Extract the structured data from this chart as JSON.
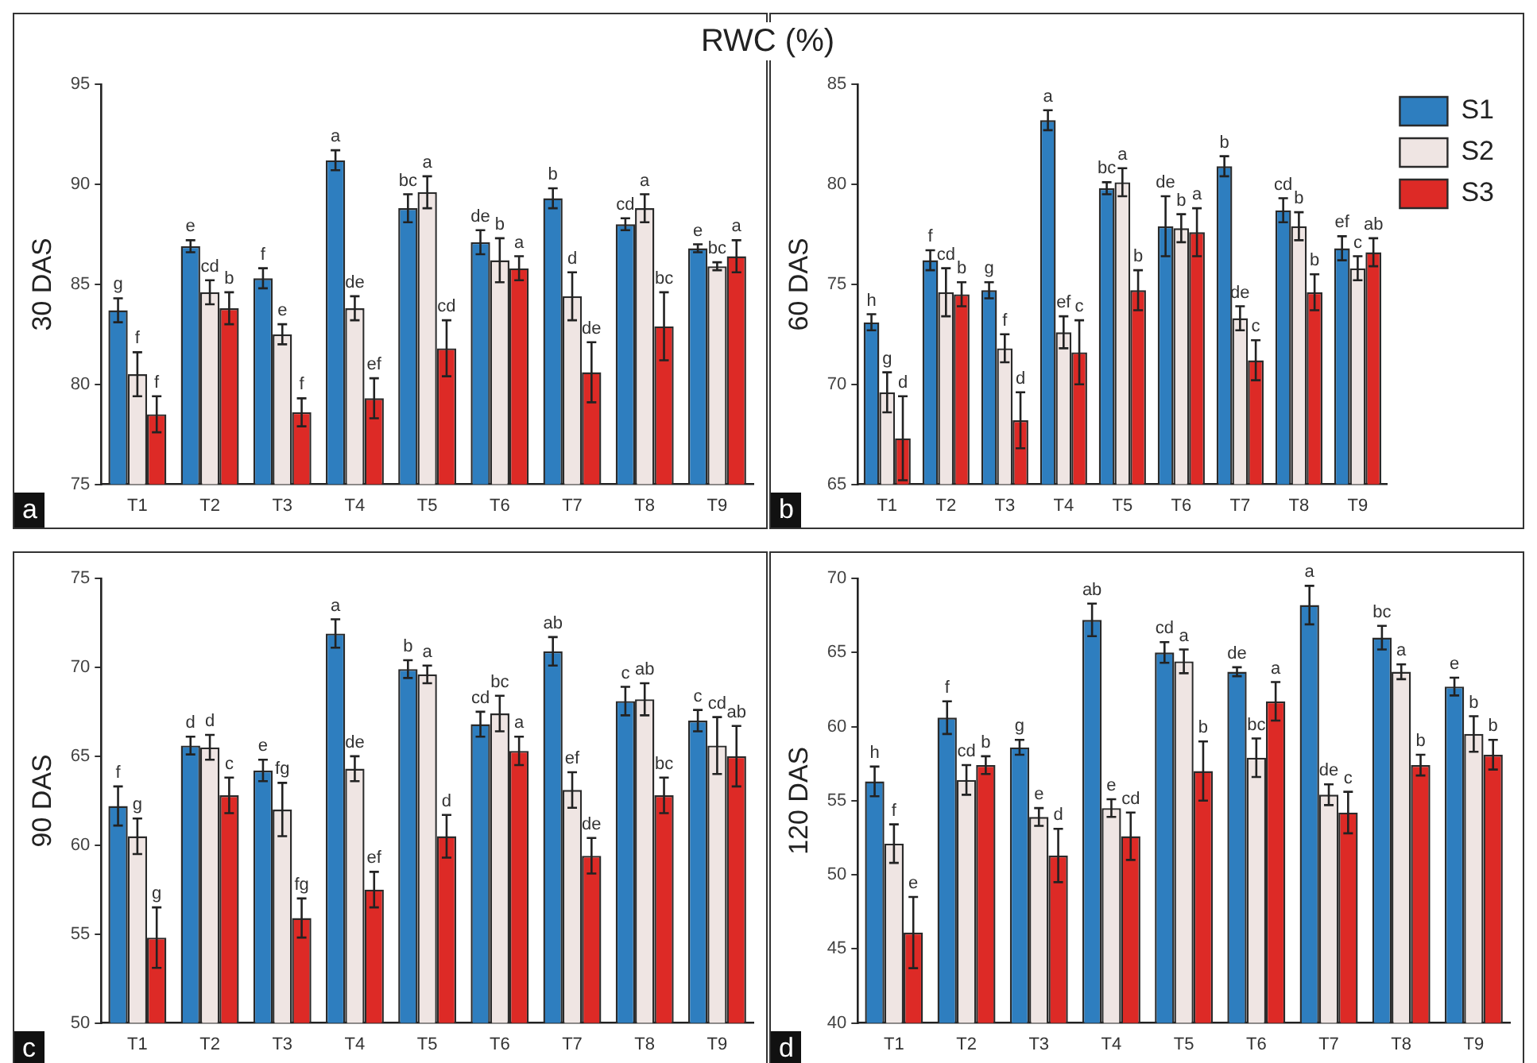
{
  "chart_data": [
    {
      "type": "bar",
      "title": "RWC (%)",
      "ylabel": "30 DAS",
      "categories": [
        "T1",
        "T2",
        "T3",
        "T4",
        "T5",
        "T6",
        "T7",
        "T8",
        "T9"
      ],
      "ylim": [
        75,
        95
      ],
      "yticks": [
        75,
        80,
        85,
        90,
        95
      ],
      "grid": false,
      "legend": false,
      "annotations": [
        "a"
      ],
      "series": [
        {
          "color": "#2e7ebf",
          "values": [
            83.7,
            86.9,
            85.3,
            91.2,
            88.8,
            87.1,
            89.3,
            88.0,
            86.8
          ],
          "errors": [
            0.6,
            0.3,
            0.5,
            0.5,
            0.7,
            0.6,
            0.5,
            0.3,
            0.2
          ],
          "value_labels": [
            "g",
            "e",
            "f",
            "a",
            "bc",
            "de",
            "b",
            "cd",
            "e"
          ]
        },
        {
          "color": "#efe5e3",
          "values": [
            80.5,
            84.6,
            82.5,
            83.8,
            89.6,
            86.2,
            84.4,
            88.8,
            85.9
          ],
          "errors": [
            1.1,
            0.6,
            0.5,
            0.6,
            0.8,
            1.1,
            1.2,
            0.7,
            0.2
          ],
          "value_labels": [
            "f",
            "cd",
            "e",
            "de",
            "a",
            "b",
            "d",
            "a",
            "bc"
          ]
        },
        {
          "color": "#dd2a26",
          "values": [
            78.5,
            83.8,
            78.6,
            79.3,
            81.8,
            85.8,
            80.6,
            82.9,
            86.4
          ],
          "errors": [
            0.9,
            0.8,
            0.7,
            1.0,
            1.4,
            0.6,
            1.5,
            1.7,
            0.8
          ],
          "value_labels": [
            "f",
            "b",
            "f",
            "ef",
            "cd",
            "a",
            "de",
            "bc",
            "a"
          ]
        }
      ]
    },
    {
      "type": "bar",
      "ylabel": "60 DAS",
      "categories": [
        "T1",
        "T2",
        "T3",
        "T4",
        "T5",
        "T6",
        "T7",
        "T8",
        "T9"
      ],
      "ylim": [
        65,
        85
      ],
      "yticks": [
        65,
        70,
        75,
        80,
        85
      ],
      "grid": false,
      "legend": "top right",
      "annotations": [
        "b"
      ],
      "series": [
        {
          "name": "S1",
          "color": "#2e7ebf",
          "values": [
            73.1,
            76.2,
            74.7,
            83.2,
            79.8,
            77.9,
            80.9,
            78.7,
            76.8
          ],
          "errors": [
            0.4,
            0.5,
            0.4,
            0.5,
            0.3,
            1.5,
            0.5,
            0.6,
            0.6
          ],
          "value_labels": [
            "h",
            "f",
            "g",
            "a",
            "bc",
            "de",
            "b",
            "cd",
            "ef"
          ]
        },
        {
          "name": "S2",
          "color": "#efe5e3",
          "values": [
            69.6,
            74.6,
            71.8,
            72.6,
            80.1,
            77.8,
            73.3,
            77.9,
            75.8
          ],
          "errors": [
            1.0,
            1.2,
            0.7,
            0.8,
            0.7,
            0.7,
            0.6,
            0.7,
            0.6
          ],
          "value_labels": [
            "g",
            "cd",
            "f",
            "ef",
            "a",
            "b",
            "de",
            "b",
            "c"
          ]
        },
        {
          "name": "S3",
          "color": "#dd2a26",
          "values": [
            67.3,
            74.5,
            68.2,
            71.6,
            74.7,
            77.6,
            71.2,
            74.6,
            76.6
          ],
          "errors": [
            2.1,
            0.6,
            1.4,
            1.6,
            1.0,
            1.2,
            1.0,
            0.9,
            0.7
          ],
          "value_labels": [
            "d",
            "b",
            "d",
            "c",
            "b",
            "a",
            "c",
            "b",
            "ab"
          ]
        }
      ]
    },
    {
      "type": "bar",
      "ylabel": "90 DAS",
      "categories": [
        "T1",
        "T2",
        "T3",
        "T4",
        "T5",
        "T6",
        "T7",
        "T8",
        "T9"
      ],
      "ylim": [
        50,
        75
      ],
      "yticks": [
        50,
        55,
        60,
        65,
        70,
        75
      ],
      "grid": false,
      "legend": false,
      "annotations": [
        "c"
      ],
      "series": [
        {
          "color": "#2e7ebf",
          "values": [
            62.2,
            65.6,
            64.2,
            71.9,
            69.9,
            66.8,
            70.9,
            68.1,
            67.0
          ],
          "errors": [
            1.1,
            0.5,
            0.6,
            0.8,
            0.5,
            0.7,
            0.8,
            0.8,
            0.6
          ],
          "value_labels": [
            "f",
            "d",
            "e",
            "a",
            "b",
            "cd",
            "ab",
            "c",
            "c"
          ]
        },
        {
          "color": "#efe5e3",
          "values": [
            60.5,
            65.5,
            62.0,
            64.3,
            69.6,
            67.4,
            63.1,
            68.2,
            65.6
          ],
          "errors": [
            1.0,
            0.7,
            1.5,
            0.7,
            0.5,
            1.0,
            1.0,
            0.9,
            1.6
          ],
          "value_labels": [
            "g",
            "d",
            "fg",
            "de",
            "a",
            "bc",
            "ef",
            "ab",
            "cd"
          ]
        },
        {
          "color": "#dd2a26",
          "values": [
            54.8,
            62.8,
            55.9,
            57.5,
            60.5,
            65.3,
            59.4,
            62.8,
            65.0
          ],
          "errors": [
            1.7,
            1.0,
            1.1,
            1.0,
            1.2,
            0.8,
            1.0,
            1.0,
            1.7
          ],
          "value_labels": [
            "g",
            "c",
            "fg",
            "ef",
            "d",
            "a",
            "de",
            "bc",
            "ab"
          ]
        }
      ]
    },
    {
      "type": "bar",
      "ylabel": "120 DAS",
      "categories": [
        "T1",
        "T2",
        "T3",
        "T4",
        "T5",
        "T6",
        "T7",
        "T8",
        "T9"
      ],
      "ylim": [
        40,
        70
      ],
      "yticks": [
        40,
        45,
        50,
        55,
        60,
        65,
        70
      ],
      "grid": false,
      "legend": false,
      "annotations": [
        "d"
      ],
      "series": [
        {
          "color": "#2e7ebf",
          "values": [
            56.3,
            60.6,
            58.6,
            67.2,
            65.0,
            63.7,
            68.2,
            66.0,
            62.7
          ],
          "errors": [
            1.0,
            1.1,
            0.5,
            1.1,
            0.7,
            0.3,
            1.3,
            0.8,
            0.6
          ],
          "value_labels": [
            "h",
            "f",
            "g",
            "ab",
            "cd",
            "de",
            "a",
            "bc",
            "e"
          ]
        },
        {
          "color": "#efe5e3",
          "values": [
            52.1,
            56.4,
            53.9,
            54.5,
            64.4,
            57.9,
            55.4,
            63.7,
            59.5
          ],
          "errors": [
            1.3,
            1.0,
            0.6,
            0.6,
            0.8,
            1.3,
            0.7,
            0.5,
            1.2
          ],
          "value_labels": [
            "f",
            "cd",
            "e",
            "e",
            "a",
            "bc",
            "de",
            "a",
            "b"
          ]
        },
        {
          "color": "#dd2a26",
          "values": [
            46.1,
            57.4,
            51.3,
            52.6,
            57.0,
            61.7,
            54.2,
            57.4,
            58.1
          ],
          "errors": [
            2.4,
            0.6,
            1.8,
            1.6,
            2.0,
            1.3,
            1.4,
            0.7,
            1.0
          ],
          "value_labels": [
            "e",
            "b",
            "d",
            "cd",
            "b",
            "a",
            "c",
            "b",
            "b"
          ]
        }
      ]
    }
  ]
}
